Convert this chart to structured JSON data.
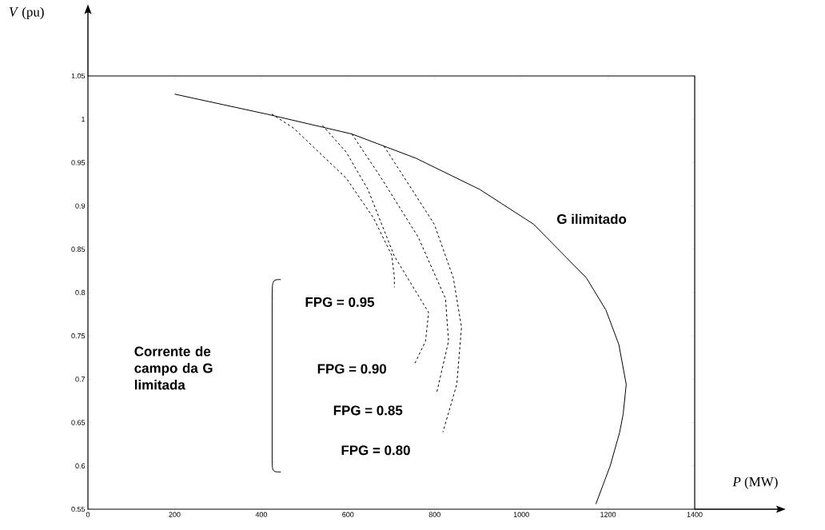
{
  "chart_data": {
    "type": "line",
    "xlabel": "*P* (MW)",
    "ylabel": "*V* (pu)",
    "xlim": [
      0,
      1400
    ],
    "ylim": [
      0.55,
      1.05
    ],
    "xticks": [
      0,
      200,
      400,
      600,
      800,
      1000,
      1200,
      1400
    ],
    "yticks": [
      0.55,
      0.6,
      0.65,
      0.7,
      0.75,
      0.8,
      0.85,
      0.9,
      0.95,
      1,
      1.05
    ],
    "annotations": [
      {
        "text": "Corrente de campo da G limitada"
      }
    ],
    "series": [
      {
        "name": "G ilimitado",
        "color": "#000000",
        "line_style": "solid",
        "x": [
          200,
          412,
          609,
          757,
          904,
          1028,
          1150,
          1195,
          1225,
          1242,
          1235,
          1227,
          1205,
          1172
        ],
        "values": [
          1.029,
          1.006,
          0.983,
          0.955,
          0.919,
          0.879,
          0.817,
          0.78,
          0.74,
          0.694,
          0.66,
          0.639,
          0.6,
          0.556
        ]
      },
      {
        "name": "FPG = 0.95",
        "color": "#000000",
        "line_style": "dashed",
        "x": [
          424,
          474,
          596,
          659,
          701,
          707,
          707
        ],
        "values": [
          1.006,
          0.99,
          0.932,
          0.886,
          0.843,
          0.818,
          0.806
        ]
      },
      {
        "name": "FPG = 0.90",
        "color": "#000000",
        "line_style": "dashed",
        "x": [
          541,
          596,
          646,
          707,
          786,
          779,
          753
        ],
        "values": [
          0.993,
          0.962,
          0.919,
          0.842,
          0.777,
          0.744,
          0.717
        ]
      },
      {
        "name": "FPG = 0.85",
        "color": "#000000",
        "line_style": "dashed",
        "x": [
          609,
          677,
          762,
          825,
          832,
          805
        ],
        "values": [
          0.983,
          0.932,
          0.864,
          0.793,
          0.744,
          0.685
        ]
      },
      {
        "name": "FPG = 0.80",
        "color": "#000000",
        "line_style": "dashed",
        "x": [
          683,
          799,
          843,
          862,
          851,
          819
        ],
        "values": [
          0.969,
          0.879,
          0.817,
          0.76,
          0.694,
          0.639
        ]
      }
    ]
  }
}
